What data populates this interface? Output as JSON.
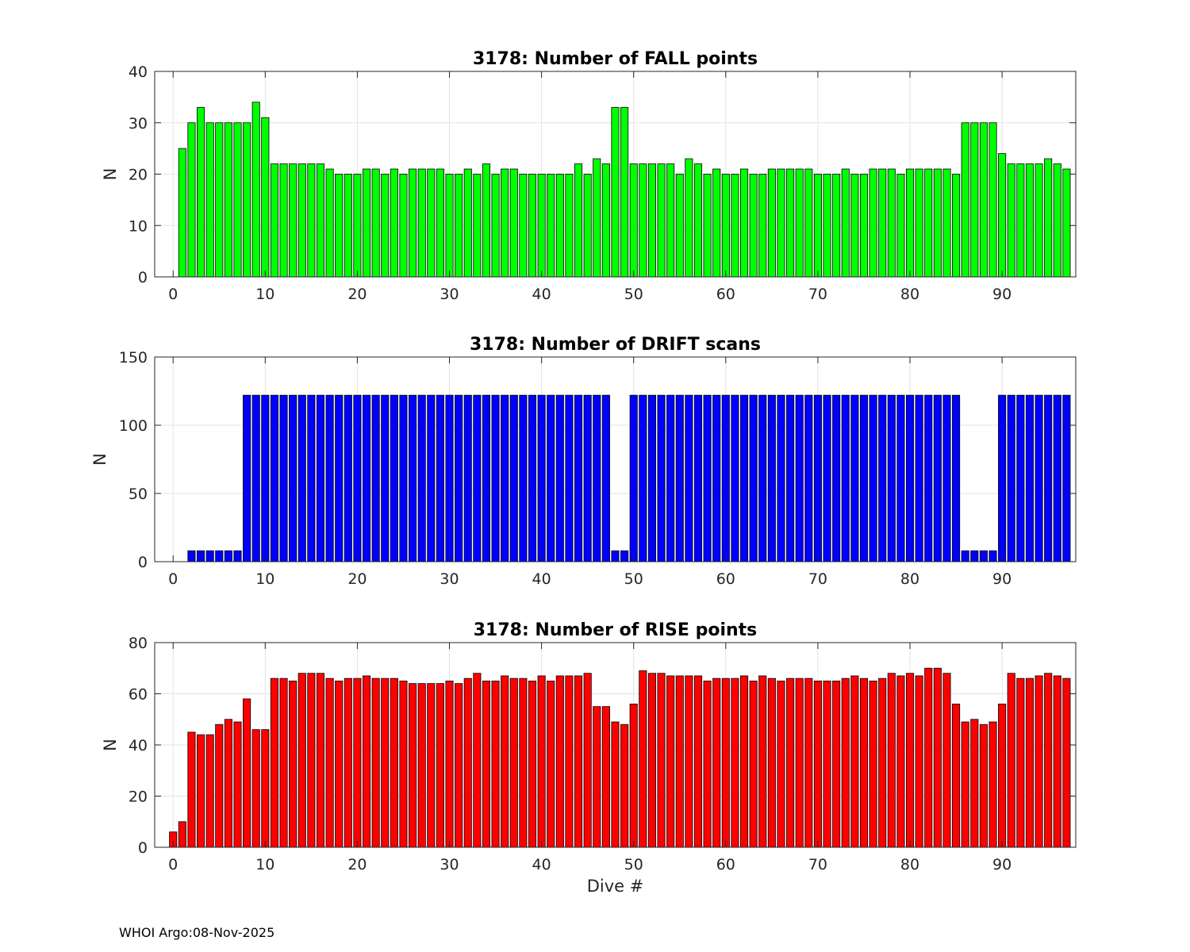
{
  "footer": "WHOI Argo:08-Nov-2025",
  "chart_data": [
    {
      "type": "bar",
      "title": "3178: Number of FALL points",
      "xlabel": "",
      "ylabel": "N",
      "color": "#00ff00",
      "xlim": [
        -2,
        98
      ],
      "ylim": [
        0,
        40
      ],
      "xticks": [
        0,
        10,
        20,
        30,
        40,
        50,
        60,
        70,
        80,
        90
      ],
      "yticks": [
        0,
        10,
        20,
        30,
        40
      ],
      "grid": true,
      "x_start": 0,
      "values": [
        0,
        25,
        30,
        33,
        30,
        30,
        30,
        30,
        30,
        34,
        31,
        22,
        22,
        22,
        22,
        22,
        22,
        21,
        20,
        20,
        20,
        21,
        21,
        20,
        21,
        20,
        21,
        21,
        21,
        21,
        20,
        20,
        21,
        20,
        22,
        20,
        21,
        21,
        20,
        20,
        20,
        20,
        20,
        20,
        22,
        20,
        23,
        22,
        33,
        33,
        22,
        22,
        22,
        22,
        22,
        20,
        23,
        22,
        20,
        21,
        20,
        20,
        21,
        20,
        20,
        21,
        21,
        21,
        21,
        21,
        20,
        20,
        20,
        21,
        20,
        20,
        21,
        21,
        21,
        20,
        21,
        21,
        21,
        21,
        21,
        20,
        30,
        30,
        30,
        30,
        24,
        22,
        22,
        22,
        22,
        23,
        22,
        21
      ]
    },
    {
      "type": "bar",
      "title": "3178: Number of DRIFT scans",
      "xlabel": "",
      "ylabel": "N",
      "color": "#0000ff",
      "xlim": [
        -2,
        98
      ],
      "ylim": [
        0,
        150
      ],
      "xticks": [
        0,
        10,
        20,
        30,
        40,
        50,
        60,
        70,
        80,
        90
      ],
      "yticks": [
        0,
        50,
        100,
        150
      ],
      "grid": true,
      "x_start": 0,
      "values": [
        0,
        0,
        8,
        8,
        8,
        8,
        8,
        8,
        122,
        122,
        122,
        122,
        122,
        122,
        122,
        122,
        122,
        122,
        122,
        122,
        122,
        122,
        122,
        122,
        122,
        122,
        122,
        122,
        122,
        122,
        122,
        122,
        122,
        122,
        122,
        122,
        122,
        122,
        122,
        122,
        122,
        122,
        122,
        122,
        122,
        122,
        122,
        122,
        8,
        8,
        122,
        122,
        122,
        122,
        122,
        122,
        122,
        122,
        122,
        122,
        122,
        122,
        122,
        122,
        122,
        122,
        122,
        122,
        122,
        122,
        122,
        122,
        122,
        122,
        122,
        122,
        122,
        122,
        122,
        122,
        122,
        122,
        122,
        122,
        122,
        122,
        8,
        8,
        8,
        8,
        122,
        122,
        122,
        122,
        122,
        122,
        122,
        122
      ]
    },
    {
      "type": "bar",
      "title": "3178: Number of RISE points",
      "xlabel": "Dive #",
      "ylabel": "N",
      "color": "#ff0000",
      "xlim": [
        -2,
        98
      ],
      "ylim": [
        0,
        80
      ],
      "xticks": [
        0,
        10,
        20,
        30,
        40,
        50,
        60,
        70,
        80,
        90
      ],
      "yticks": [
        0,
        20,
        40,
        60,
        80
      ],
      "grid": true,
      "x_start": 0,
      "values": [
        6,
        10,
        45,
        44,
        44,
        48,
        50,
        49,
        58,
        46,
        46,
        66,
        66,
        65,
        68,
        68,
        68,
        66,
        65,
        66,
        66,
        67,
        66,
        66,
        66,
        65,
        64,
        64,
        64,
        64,
        65,
        64,
        66,
        68,
        65,
        65,
        67,
        66,
        66,
        65,
        67,
        65,
        67,
        67,
        67,
        68,
        55,
        55,
        49,
        48,
        56,
        69,
        68,
        68,
        67,
        67,
        67,
        67,
        65,
        66,
        66,
        66,
        67,
        65,
        67,
        66,
        65,
        66,
        66,
        66,
        65,
        65,
        65,
        66,
        67,
        66,
        65,
        66,
        68,
        67,
        68,
        67,
        70,
        70,
        68,
        56,
        49,
        50,
        48,
        49,
        56,
        68,
        66,
        66,
        67,
        68,
        67,
        66
      ]
    }
  ]
}
